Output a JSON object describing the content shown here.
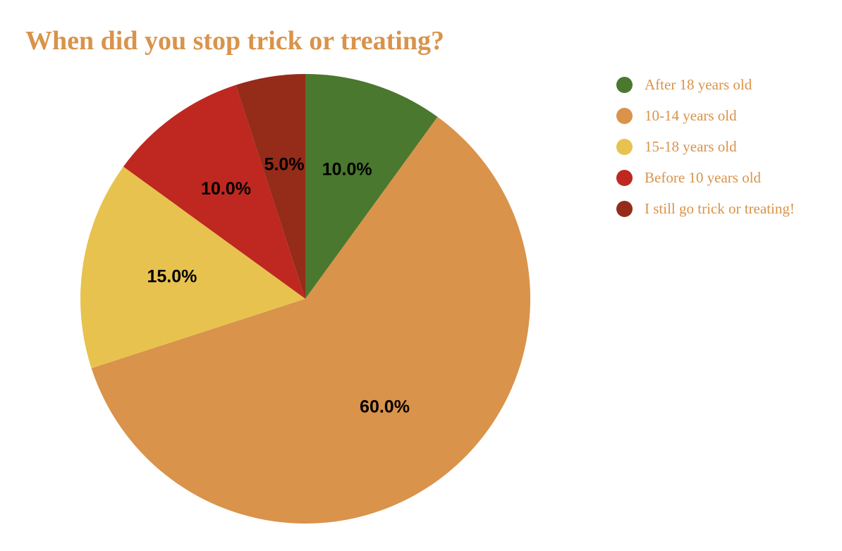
{
  "chart_data": {
    "type": "pie",
    "title": "When did you stop trick or treating?",
    "categories": [
      "After 18 years old",
      "10-14 years old",
      "15-18 years old",
      "Before 10 years old",
      "I still go trick or treating!"
    ],
    "values": [
      10.0,
      60.0,
      15.0,
      10.0,
      5.0
    ],
    "value_labels": [
      "10.0%",
      "60.0%",
      "15.0%",
      "10.0%",
      "5.0%"
    ],
    "colors": [
      "#4A782E",
      "#D9934B",
      "#E8C24F",
      "#BE2820",
      "#952B19"
    ],
    "start_angle": "12 o'clock",
    "direction": "clockwise",
    "legend_position": "right"
  },
  "legend": {
    "items": [
      {
        "label": "After 18 years old",
        "color": "#4A782E"
      },
      {
        "label": "10-14 years old",
        "color": "#D9934B"
      },
      {
        "label": "15-18 years old",
        "color": "#E8C24F"
      },
      {
        "label": "Before 10 years old",
        "color": "#BE2820"
      },
      {
        "label": "I still go trick or treating!",
        "color": "#952B19"
      }
    ]
  },
  "label_color": "#000000",
  "title_color": "#D9934B"
}
